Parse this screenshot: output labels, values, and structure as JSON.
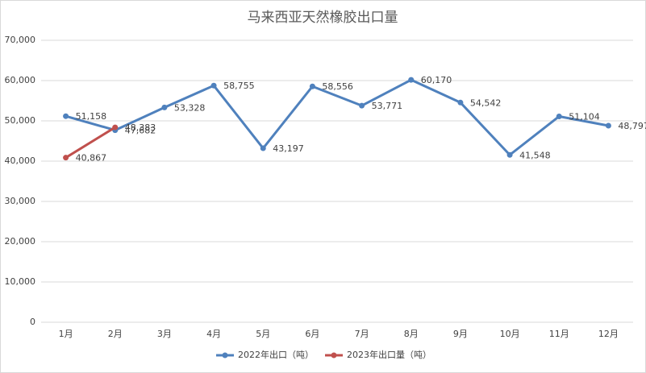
{
  "chart_data": {
    "type": "line",
    "title": "马来西亚天然橡胶出口量",
    "categories": [
      "1月",
      "2月",
      "3月",
      "4月",
      "5月",
      "6月",
      "7月",
      "8月",
      "9月",
      "10月",
      "11月",
      "12月"
    ],
    "series": [
      {
        "name": "2022年出口（吨）",
        "color": "#4f81bd",
        "values": [
          51158,
          47682,
          53328,
          58755,
          43197,
          58556,
          53771,
          60170,
          54542,
          41548,
          51104,
          48797
        ],
        "value_labels": [
          "51,158",
          "47,682",
          "53,328",
          "58,755",
          "43,197",
          "58,556",
          "53,771",
          "60,170",
          "54,542",
          "41,548",
          "51,104",
          "48,797"
        ]
      },
      {
        "name": "2023年出口量（吨）",
        "color": "#c0504d",
        "values": [
          40867,
          48383,
          null,
          null,
          null,
          null,
          null,
          null,
          null,
          null,
          null,
          null
        ],
        "value_labels": [
          "40,867",
          "48,383",
          null,
          null,
          null,
          null,
          null,
          null,
          null,
          null,
          null,
          null
        ]
      }
    ],
    "ylim": [
      0,
      70000
    ],
    "yticks": [
      0,
      {
        "value": 10000,
        "label": "10,000"
      },
      {
        "value": 20000,
        "label": "20,000"
      },
      {
        "value": 30000,
        "label": "30,000"
      },
      {
        "value": 40000,
        "label": "40,000"
      },
      {
        "value": 50000,
        "label": "50,000"
      },
      {
        "value": 60000,
        "label": "60,000"
      },
      {
        "value": 70000,
        "label": "70,000"
      }
    ],
    "grid": true,
    "legend": "bottom"
  }
}
